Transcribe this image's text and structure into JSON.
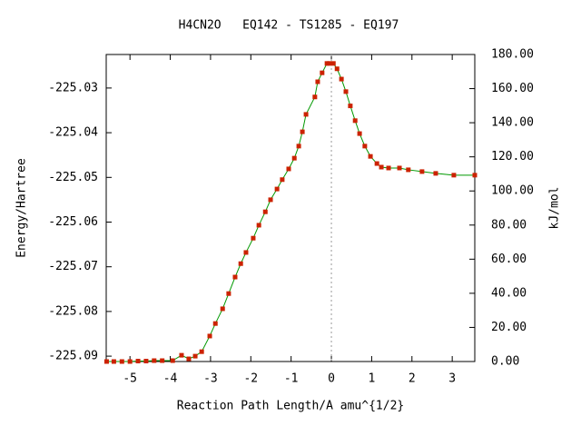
{
  "chart_data": {
    "type": "line",
    "title": "H4CN2O   EQ142 - TS1285 - EQ197",
    "xlabel": "Reaction Path Length/A amu^{1/2}",
    "ylabel": "Energy/Hartree",
    "y2label": "kJ/mol",
    "x": [
      -5.58,
      -5.4,
      -5.2,
      -5.0,
      -4.8,
      -4.6,
      -4.4,
      -4.2,
      -3.94,
      -3.72,
      -3.54,
      -3.38,
      -3.22,
      -3.02,
      -2.88,
      -2.7,
      -2.55,
      -2.39,
      -2.25,
      -2.12,
      -1.94,
      -1.8,
      -1.64,
      -1.51,
      -1.35,
      -1.22,
      -1.06,
      -0.92,
      -0.81,
      -0.72,
      -0.63,
      -0.41,
      -0.34,
      -0.23,
      -0.11,
      -0.05,
      0.05,
      0.14,
      0.25,
      0.36,
      0.47,
      0.59,
      0.7,
      0.83,
      0.97,
      1.13,
      1.24,
      1.42,
      1.69,
      1.91,
      2.25,
      2.59,
      3.04,
      3.56
    ],
    "series": [
      {
        "name": "Energy",
        "color": "#009900",
        "marker_color": "#cc2200",
        "values": [
          -225.0912,
          -225.0912,
          -225.0912,
          -225.0912,
          -225.0911,
          -225.0911,
          -225.091,
          -225.091,
          -225.091,
          -225.0898,
          -225.0906,
          -225.09,
          -225.089,
          -225.0855,
          -225.0827,
          -225.0794,
          -225.076,
          -225.0723,
          -225.0693,
          -225.0668,
          -225.0636,
          -225.0607,
          -225.0577,
          -225.055,
          -225.0526,
          -225.0505,
          -225.0481,
          -225.0457,
          -225.043,
          -225.0398,
          -225.0359,
          -225.032,
          -225.0286,
          -225.0266,
          -225.0245,
          -225.0245,
          -225.0245,
          -225.0257,
          -225.028,
          -225.0308,
          -225.034,
          -225.0373,
          -225.0402,
          -225.043,
          -225.0453,
          -225.0469,
          -225.0477,
          -225.0479,
          -225.0479,
          -225.0483,
          -225.0487,
          -225.0491,
          -225.0495,
          -225.0495
        ]
      }
    ],
    "xlim": [
      -5.59,
      3.56
    ],
    "ylim": [
      -225.0912,
      -225.0225
    ],
    "y2lim": [
      0,
      180
    ],
    "xticks": [
      -5,
      -4,
      -3,
      -2,
      -1,
      0,
      1,
      2,
      3
    ],
    "yticks": [
      -225.09,
      -225.08,
      -225.07,
      -225.06,
      -225.05,
      -225.04,
      -225.03
    ],
    "y2ticks": [
      {
        "value": 0,
        "label": "0.00"
      },
      {
        "value": 20,
        "label": "20.00"
      },
      {
        "value": 40,
        "label": "40.00"
      },
      {
        "value": 60,
        "label": "60.00"
      },
      {
        "value": 80,
        "label": "80.00"
      },
      {
        "value": 100,
        "label": "100.00"
      },
      {
        "value": 120,
        "label": "120.00"
      },
      {
        "value": 140,
        "label": "140.00"
      },
      {
        "value": 160,
        "label": "160.00"
      },
      {
        "value": 180,
        "label": "180.00"
      }
    ]
  }
}
